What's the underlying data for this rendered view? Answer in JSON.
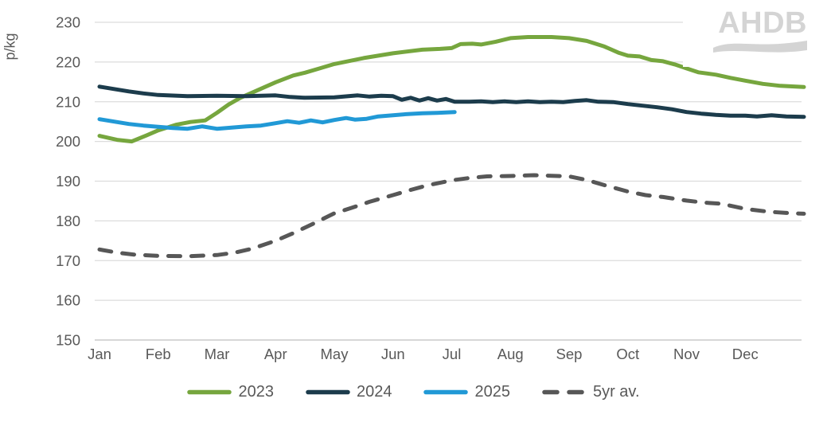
{
  "logo": {
    "text": "AHDB"
  },
  "chart_data": {
    "type": "line",
    "title": "",
    "ylabel": "p/kg",
    "xlabel": "",
    "ylim": [
      150,
      230
    ],
    "yticks": [
      150,
      160,
      170,
      180,
      190,
      200,
      210,
      220,
      230
    ],
    "x_categories": [
      "Jan",
      "Feb",
      "Mar",
      "Apr",
      "May",
      "Jun",
      "Jul",
      "Aug",
      "Sep",
      "Oct",
      "Nov",
      "Dec"
    ],
    "grid": "horizontal-light",
    "legend_position": "bottom",
    "axis_text_color": "#595959",
    "gridline_color": "#dcdcdc",
    "baseline_color": "#bfbfbf",
    "series": [
      {
        "name": "2023",
        "color": "#76a63e",
        "style": "solid",
        "points": [
          [
            0,
            201.4
          ],
          [
            0.3,
            200.4
          ],
          [
            0.55,
            200.0
          ],
          [
            0.8,
            201.5
          ],
          [
            1,
            202.8
          ],
          [
            1.3,
            204.2
          ],
          [
            1.55,
            204.9
          ],
          [
            1.8,
            205.3
          ],
          [
            2,
            207.2
          ],
          [
            2.2,
            209.3
          ],
          [
            2.4,
            211.0
          ],
          [
            2.6,
            212.3
          ],
          [
            2.8,
            213.6
          ],
          [
            3,
            214.9
          ],
          [
            3.3,
            216.6
          ],
          [
            3.5,
            217.3
          ],
          [
            3.75,
            218.4
          ],
          [
            4,
            219.5
          ],
          [
            4.5,
            221.0
          ],
          [
            5,
            222.2
          ],
          [
            5.5,
            223.1
          ],
          [
            5.8,
            223.3
          ],
          [
            6,
            223.5
          ],
          [
            6.15,
            224.5
          ],
          [
            6.35,
            224.6
          ],
          [
            6.5,
            224.4
          ],
          [
            6.75,
            225.1
          ],
          [
            7,
            226.0
          ],
          [
            7.3,
            226.3
          ],
          [
            7.7,
            226.3
          ],
          [
            8,
            226.0
          ],
          [
            8.3,
            225.3
          ],
          [
            8.6,
            223.9
          ],
          [
            8.85,
            222.3
          ],
          [
            9,
            221.6
          ],
          [
            9.2,
            221.4
          ],
          [
            9.4,
            220.5
          ],
          [
            9.6,
            220.2
          ],
          [
            9.8,
            219.4
          ],
          [
            10,
            218.4
          ],
          [
            10.2,
            217.4
          ],
          [
            10.5,
            216.8
          ],
          [
            10.75,
            216.0
          ],
          [
            11,
            215.3
          ],
          [
            11.3,
            214.5
          ],
          [
            11.6,
            214.0
          ],
          [
            12,
            213.7
          ]
        ]
      },
      {
        "name": "2024",
        "color": "#1c3c4c",
        "style": "solid",
        "points": [
          [
            0,
            213.8
          ],
          [
            0.25,
            213.2
          ],
          [
            0.5,
            212.6
          ],
          [
            0.75,
            212.1
          ],
          [
            1,
            211.7
          ],
          [
            1.5,
            211.4
          ],
          [
            2,
            211.5
          ],
          [
            2.5,
            211.4
          ],
          [
            3,
            211.6
          ],
          [
            3.25,
            211.2
          ],
          [
            3.5,
            211.0
          ],
          [
            4,
            211.1
          ],
          [
            4.4,
            211.6
          ],
          [
            4.6,
            211.3
          ],
          [
            4.8,
            211.5
          ],
          [
            5,
            211.4
          ],
          [
            5.15,
            210.5
          ],
          [
            5.3,
            211.0
          ],
          [
            5.45,
            210.3
          ],
          [
            5.6,
            210.9
          ],
          [
            5.75,
            210.3
          ],
          [
            5.9,
            210.7
          ],
          [
            6.05,
            210.0
          ],
          [
            6.3,
            210.0
          ],
          [
            6.5,
            210.1
          ],
          [
            6.7,
            209.9
          ],
          [
            6.9,
            210.1
          ],
          [
            7.1,
            209.9
          ],
          [
            7.3,
            210.1
          ],
          [
            7.5,
            209.9
          ],
          [
            7.7,
            210.0
          ],
          [
            7.9,
            209.9
          ],
          [
            8.1,
            210.2
          ],
          [
            8.3,
            210.4
          ],
          [
            8.5,
            210.0
          ],
          [
            8.75,
            209.9
          ],
          [
            9,
            209.4
          ],
          [
            9.25,
            209.0
          ],
          [
            9.5,
            208.6
          ],
          [
            9.75,
            208.1
          ],
          [
            10,
            207.4
          ],
          [
            10.25,
            207.0
          ],
          [
            10.5,
            206.7
          ],
          [
            10.75,
            206.5
          ],
          [
            11,
            206.5
          ],
          [
            11.2,
            206.3
          ],
          [
            11.45,
            206.6
          ],
          [
            11.7,
            206.3
          ],
          [
            12,
            206.2
          ]
        ]
      },
      {
        "name": "2025",
        "color": "#2199d6",
        "style": "solid",
        "points": [
          [
            0,
            205.6
          ],
          [
            0.25,
            205.0
          ],
          [
            0.5,
            204.4
          ],
          [
            0.75,
            204.0
          ],
          [
            1,
            203.7
          ],
          [
            1.25,
            203.4
          ],
          [
            1.5,
            203.2
          ],
          [
            1.75,
            203.8
          ],
          [
            2,
            203.2
          ],
          [
            2.25,
            203.5
          ],
          [
            2.5,
            203.8
          ],
          [
            2.75,
            204.0
          ],
          [
            3,
            204.6
          ],
          [
            3.2,
            205.1
          ],
          [
            3.4,
            204.7
          ],
          [
            3.6,
            205.3
          ],
          [
            3.8,
            204.8
          ],
          [
            4,
            205.4
          ],
          [
            4.2,
            205.9
          ],
          [
            4.35,
            205.5
          ],
          [
            4.55,
            205.7
          ],
          [
            4.75,
            206.3
          ],
          [
            5,
            206.6
          ],
          [
            5.25,
            206.9
          ],
          [
            5.5,
            207.1
          ],
          [
            5.75,
            207.2
          ],
          [
            6.05,
            207.4
          ]
        ]
      },
      {
        "name": "5yr av.",
        "color": "#575757",
        "style": "dashed",
        "points": [
          [
            0,
            172.8
          ],
          [
            0.3,
            172.0
          ],
          [
            0.6,
            171.5
          ],
          [
            1,
            171.2
          ],
          [
            1.5,
            171.1
          ],
          [
            2,
            171.4
          ],
          [
            2.3,
            172.0
          ],
          [
            2.6,
            173.0
          ],
          [
            3,
            175.0
          ],
          [
            3.3,
            176.9
          ],
          [
            3.6,
            179.0
          ],
          [
            4,
            181.9
          ],
          [
            4.3,
            183.3
          ],
          [
            4.6,
            184.8
          ],
          [
            5,
            186.5
          ],
          [
            5.3,
            187.8
          ],
          [
            5.6,
            189.0
          ],
          [
            6,
            190.2
          ],
          [
            6.3,
            190.8
          ],
          [
            6.6,
            191.2
          ],
          [
            7,
            191.3
          ],
          [
            7.4,
            191.5
          ],
          [
            7.8,
            191.3
          ],
          [
            8,
            191.2
          ],
          [
            8.3,
            190.3
          ],
          [
            8.6,
            189.0
          ],
          [
            9,
            187.4
          ],
          [
            9.3,
            186.5
          ],
          [
            9.6,
            186.0
          ],
          [
            10,
            185.1
          ],
          [
            10.3,
            184.6
          ],
          [
            10.6,
            184.3
          ],
          [
            11,
            183.0
          ],
          [
            11.4,
            182.3
          ],
          [
            11.7,
            182.0
          ],
          [
            12,
            181.8
          ]
        ]
      }
    ]
  }
}
